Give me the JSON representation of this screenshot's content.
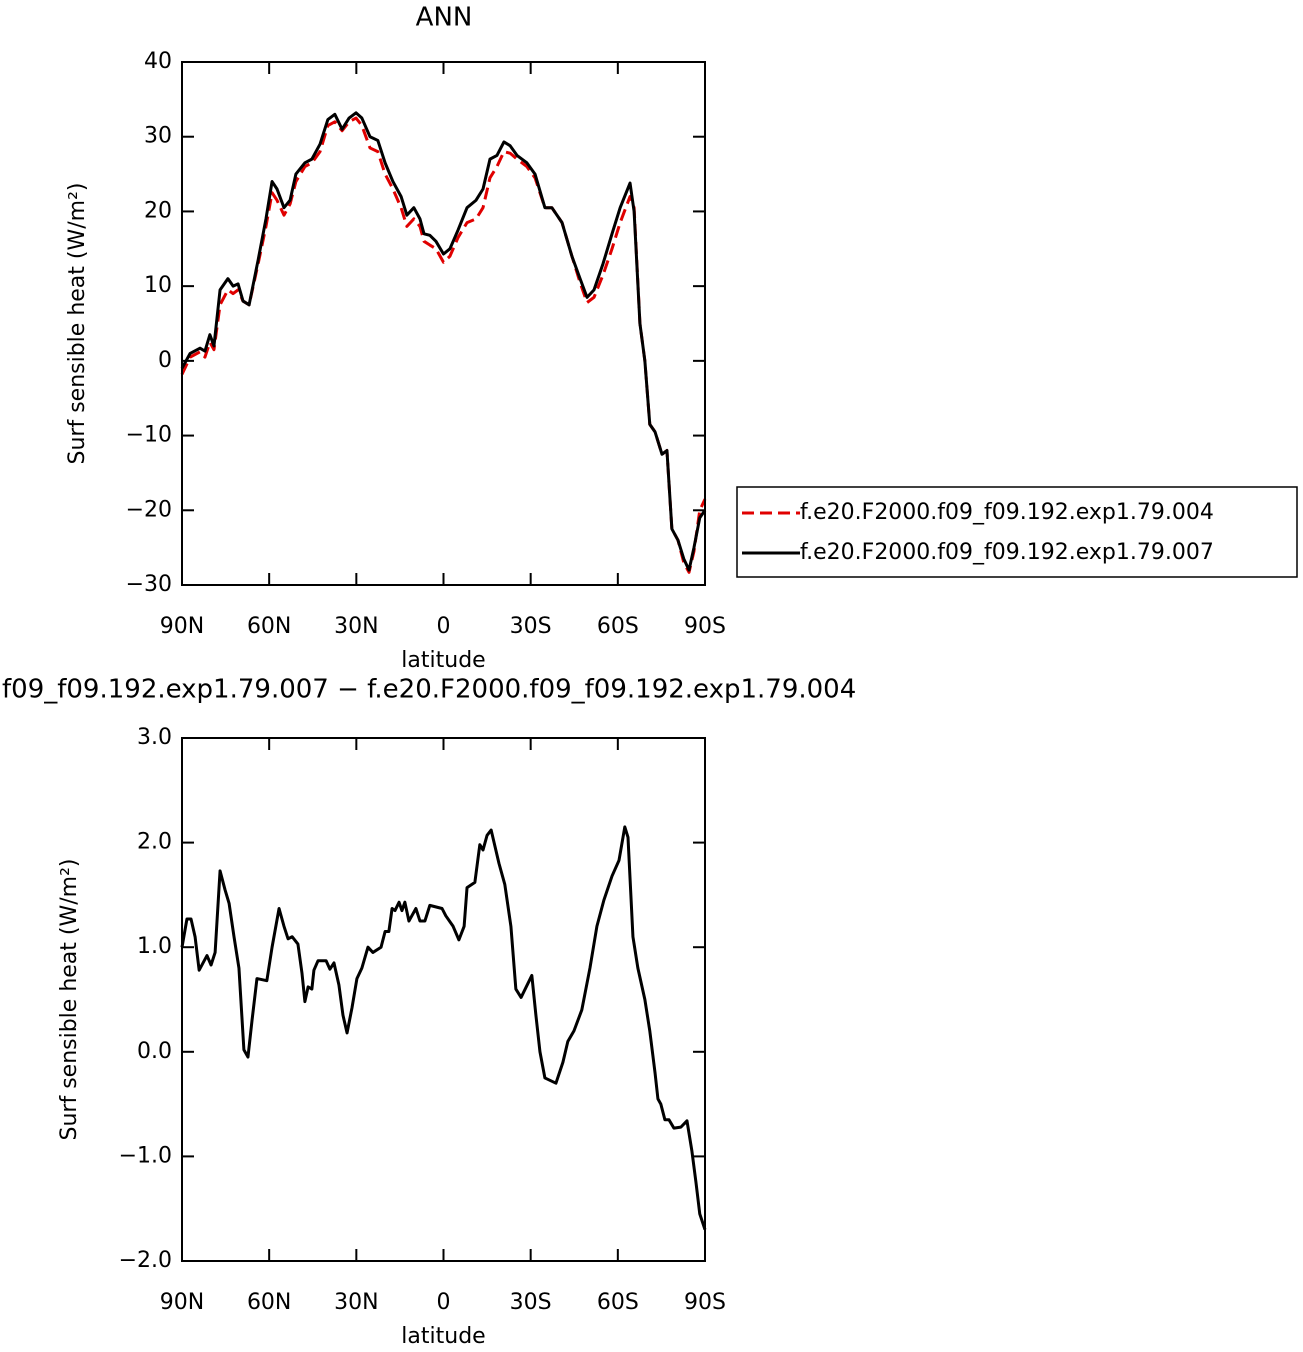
{
  "chart_data": [
    {
      "type": "line",
      "title": "ANN",
      "xlabel": "latitude",
      "ylabel": "Surf sensible heat (W/m²)",
      "xlim": [
        90,
        -90
      ],
      "xticks": [
        {
          "value": 90,
          "label": "90N"
        },
        {
          "value": 60,
          "label": "60N"
        },
        {
          "value": 30,
          "label": "30N"
        },
        0,
        {
          "value": -30,
          "label": "30S"
        },
        {
          "value": -60,
          "label": "60S"
        },
        {
          "value": -90,
          "label": "90S"
        }
      ],
      "ylim": [
        -30,
        40
      ],
      "yticks": [
        {
          "value": -30,
          "label": "−30"
        },
        {
          "value": -20,
          "label": "−20"
        },
        {
          "value": -10,
          "label": "−10"
        },
        0,
        10,
        20,
        30,
        40
      ],
      "legend": "outside-right",
      "x": [
        90,
        87.2,
        83.8,
        82.1,
        80.4,
        79,
        76.9,
        74.2,
        72.4,
        70.7,
        69,
        66.9,
        63.8,
        61.1,
        59,
        57.3,
        54.9,
        52.8,
        50.8,
        47.7,
        45.3,
        42.5,
        39.8,
        37.4,
        34.9,
        32.5,
        30.1,
        28.1,
        25.3,
        22.6,
        20.1,
        17.4,
        14.6,
        12.6,
        10.2,
        8.1,
        6.7,
        4.7,
        2.6,
        0,
        -2.2,
        -5,
        -8.1,
        -11.2,
        -13.6,
        -16,
        -18.4,
        -20.8,
        -22.9,
        -25.3,
        -28.7,
        -31.5,
        -34.9,
        -37.3,
        -40.8,
        -44.2,
        -47,
        -49.4,
        -51.8,
        -54.9,
        -58,
        -60.8,
        -64.2,
        -65.6,
        -67.6,
        -69.3,
        -71,
        -72.8,
        -75.2,
        -76.9,
        -78.6,
        -80.7,
        -82.7,
        -84.5,
        -86.2,
        -88.2,
        -90
      ],
      "series": [
        {
          "name": "f.e20.F2000.f09_f09.192.exp1.79.004",
          "color": "#e00000",
          "dashed": true,
          "values": [
            -1.8,
            0.5,
            1.2,
            0.5,
            2.5,
            1.5,
            7.5,
            9.5,
            9,
            9.5,
            8,
            7.5,
            13,
            18,
            22.5,
            21.5,
            19.5,
            21,
            24,
            26,
            26.5,
            28,
            31.5,
            32,
            30.8,
            32,
            32.5,
            31.5,
            28.5,
            28,
            25,
            23,
            20.5,
            18,
            19,
            18,
            16,
            15.5,
            15,
            13.2,
            14,
            16.5,
            18.5,
            19,
            20.5,
            24.5,
            26,
            28,
            27.8,
            27,
            26,
            24.5,
            20.5,
            20.5,
            18.5,
            14,
            10.5,
            7.8,
            8.5,
            11.5,
            15,
            18.5,
            22,
            20.5,
            5,
            0,
            -8.5,
            -9.5,
            -12.5,
            -12,
            -22.5,
            -24,
            -27,
            -28.3,
            -25.5,
            -20,
            -18.5
          ]
        },
        {
          "name": "f.e20.F2000.f09_f09.192.exp1.79.007",
          "color": "#000000",
          "dashed": false,
          "values": [
            -1,
            1,
            1.7,
            1.3,
            3.5,
            2,
            9.5,
            11,
            10,
            10.3,
            8,
            7.5,
            13.5,
            19,
            24,
            23,
            20.5,
            21.5,
            25,
            26.5,
            27,
            29,
            32.3,
            33,
            31,
            32.5,
            33.2,
            32.5,
            30,
            29.5,
            26.5,
            24,
            22,
            19.5,
            20.5,
            19,
            17,
            16.8,
            16,
            14.3,
            15,
            17.5,
            20.5,
            21.5,
            23,
            27,
            27.5,
            29.3,
            28.8,
            27.5,
            26.5,
            25,
            20.5,
            20.5,
            18.5,
            14,
            11,
            8.5,
            9.5,
            13,
            17,
            20.5,
            23.8,
            20,
            5,
            0,
            -8.5,
            -9.5,
            -12.5,
            -12,
            -22.5,
            -24,
            -26.5,
            -28,
            -25,
            -21,
            -20
          ]
        }
      ]
    },
    {
      "type": "line",
      "title": "f09_f09.192.exp1.79.007 − f.e20.F2000.f09_f09.192.exp1.79.004",
      "xlabel": "latitude",
      "ylabel": "Surf sensible heat (W/m²)",
      "xlim": [
        90,
        -90
      ],
      "xticks": [
        {
          "value": 90,
          "label": "90N"
        },
        {
          "value": 60,
          "label": "60N"
        },
        {
          "value": 30,
          "label": "30N"
        },
        0,
        {
          "value": -30,
          "label": "30S"
        },
        {
          "value": -60,
          "label": "60S"
        },
        {
          "value": -90,
          "label": "90S"
        }
      ],
      "ylim": [
        -2,
        3
      ],
      "yticks": [
        {
          "value": -2,
          "label": "−2.0"
        },
        {
          "value": -1,
          "label": "−1.0"
        },
        {
          "value": 0,
          "label": "0.0"
        },
        {
          "value": 1,
          "label": "1.0"
        },
        {
          "value": 2,
          "label": "2.0"
        },
        {
          "value": 3,
          "label": "3.0"
        }
      ],
      "x": [
        90,
        88.3,
        86.9,
        85.5,
        84.1,
        81.4,
        80,
        78.6,
        76.9,
        75.2,
        73.8,
        72.1,
        70.4,
        68.7,
        67.3,
        65.9,
        64.2,
        60.8,
        59,
        56.6,
        54.9,
        53.5,
        52.1,
        50.1,
        48.7,
        47.7,
        46.6,
        45.3,
        44.6,
        43.2,
        40.4,
        39.1,
        37.7,
        36,
        34.6,
        33.2,
        31.5,
        29.8,
        28.1,
        26,
        24.3,
        21.5,
        20.1,
        18.8,
        17.7,
        16.7,
        15.3,
        14.3,
        13.3,
        11.9,
        9.5,
        8.1,
        6.4,
        4.7,
        0.5,
        -0.8,
        -3.3,
        -5.3,
        -7.1,
        -8.1,
        -10.8,
        -12.5,
        -13.6,
        -15,
        -16.4,
        -19.1,
        -21.1,
        -23.2,
        -24.9,
        -26.7,
        -30.4,
        -31.8,
        -33.2,
        -34.9,
        -38.7,
        -41.1,
        -42.8,
        -44.9,
        -47.6,
        -50.4,
        -52.8,
        -55.2,
        -58,
        -60.4,
        -62.4,
        -63.5,
        -65.2,
        -66.9,
        -69.3,
        -71,
        -72.8,
        -73.8,
        -74.8,
        -76.2,
        -77.6,
        -79.3,
        -81.7,
        -83.8,
        -85.5,
        -86.9,
        -88.2,
        -90
      ],
      "series": [
        {
          "color": "#000000",
          "dashed": false,
          "values": [
            1.0,
            1.27,
            1.27,
            1.1,
            0.78,
            0.92,
            0.83,
            0.95,
            1.73,
            1.55,
            1.42,
            1.1,
            0.8,
            0.02,
            -0.05,
            0.3,
            0.7,
            0.68,
            1.0,
            1.37,
            1.2,
            1.08,
            1.1,
            1.03,
            0.75,
            0.48,
            0.62,
            0.6,
            0.78,
            0.87,
            0.87,
            0.79,
            0.85,
            0.64,
            0.35,
            0.18,
            0.42,
            0.7,
            0.8,
            1.0,
            0.95,
            1.0,
            1.15,
            1.15,
            1.37,
            1.35,
            1.43,
            1.35,
            1.43,
            1.25,
            1.37,
            1.25,
            1.25,
            1.4,
            1.37,
            1.3,
            1.2,
            1.07,
            1.2,
            1.57,
            1.62,
            1.98,
            1.93,
            2.07,
            2.12,
            1.8,
            1.6,
            1.2,
            0.6,
            0.52,
            0.73,
            0.35,
            0.0,
            -0.25,
            -0.3,
            -0.1,
            0.1,
            0.2,
            0.4,
            0.8,
            1.2,
            1.45,
            1.68,
            1.83,
            2.15,
            2.05,
            1.1,
            0.8,
            0.5,
            0.2,
            -0.2,
            -0.45,
            -0.5,
            -0.65,
            -0.65,
            -0.73,
            -0.72,
            -0.66,
            -0.95,
            -1.25,
            -1.55,
            -1.7
          ]
        }
      ]
    }
  ]
}
